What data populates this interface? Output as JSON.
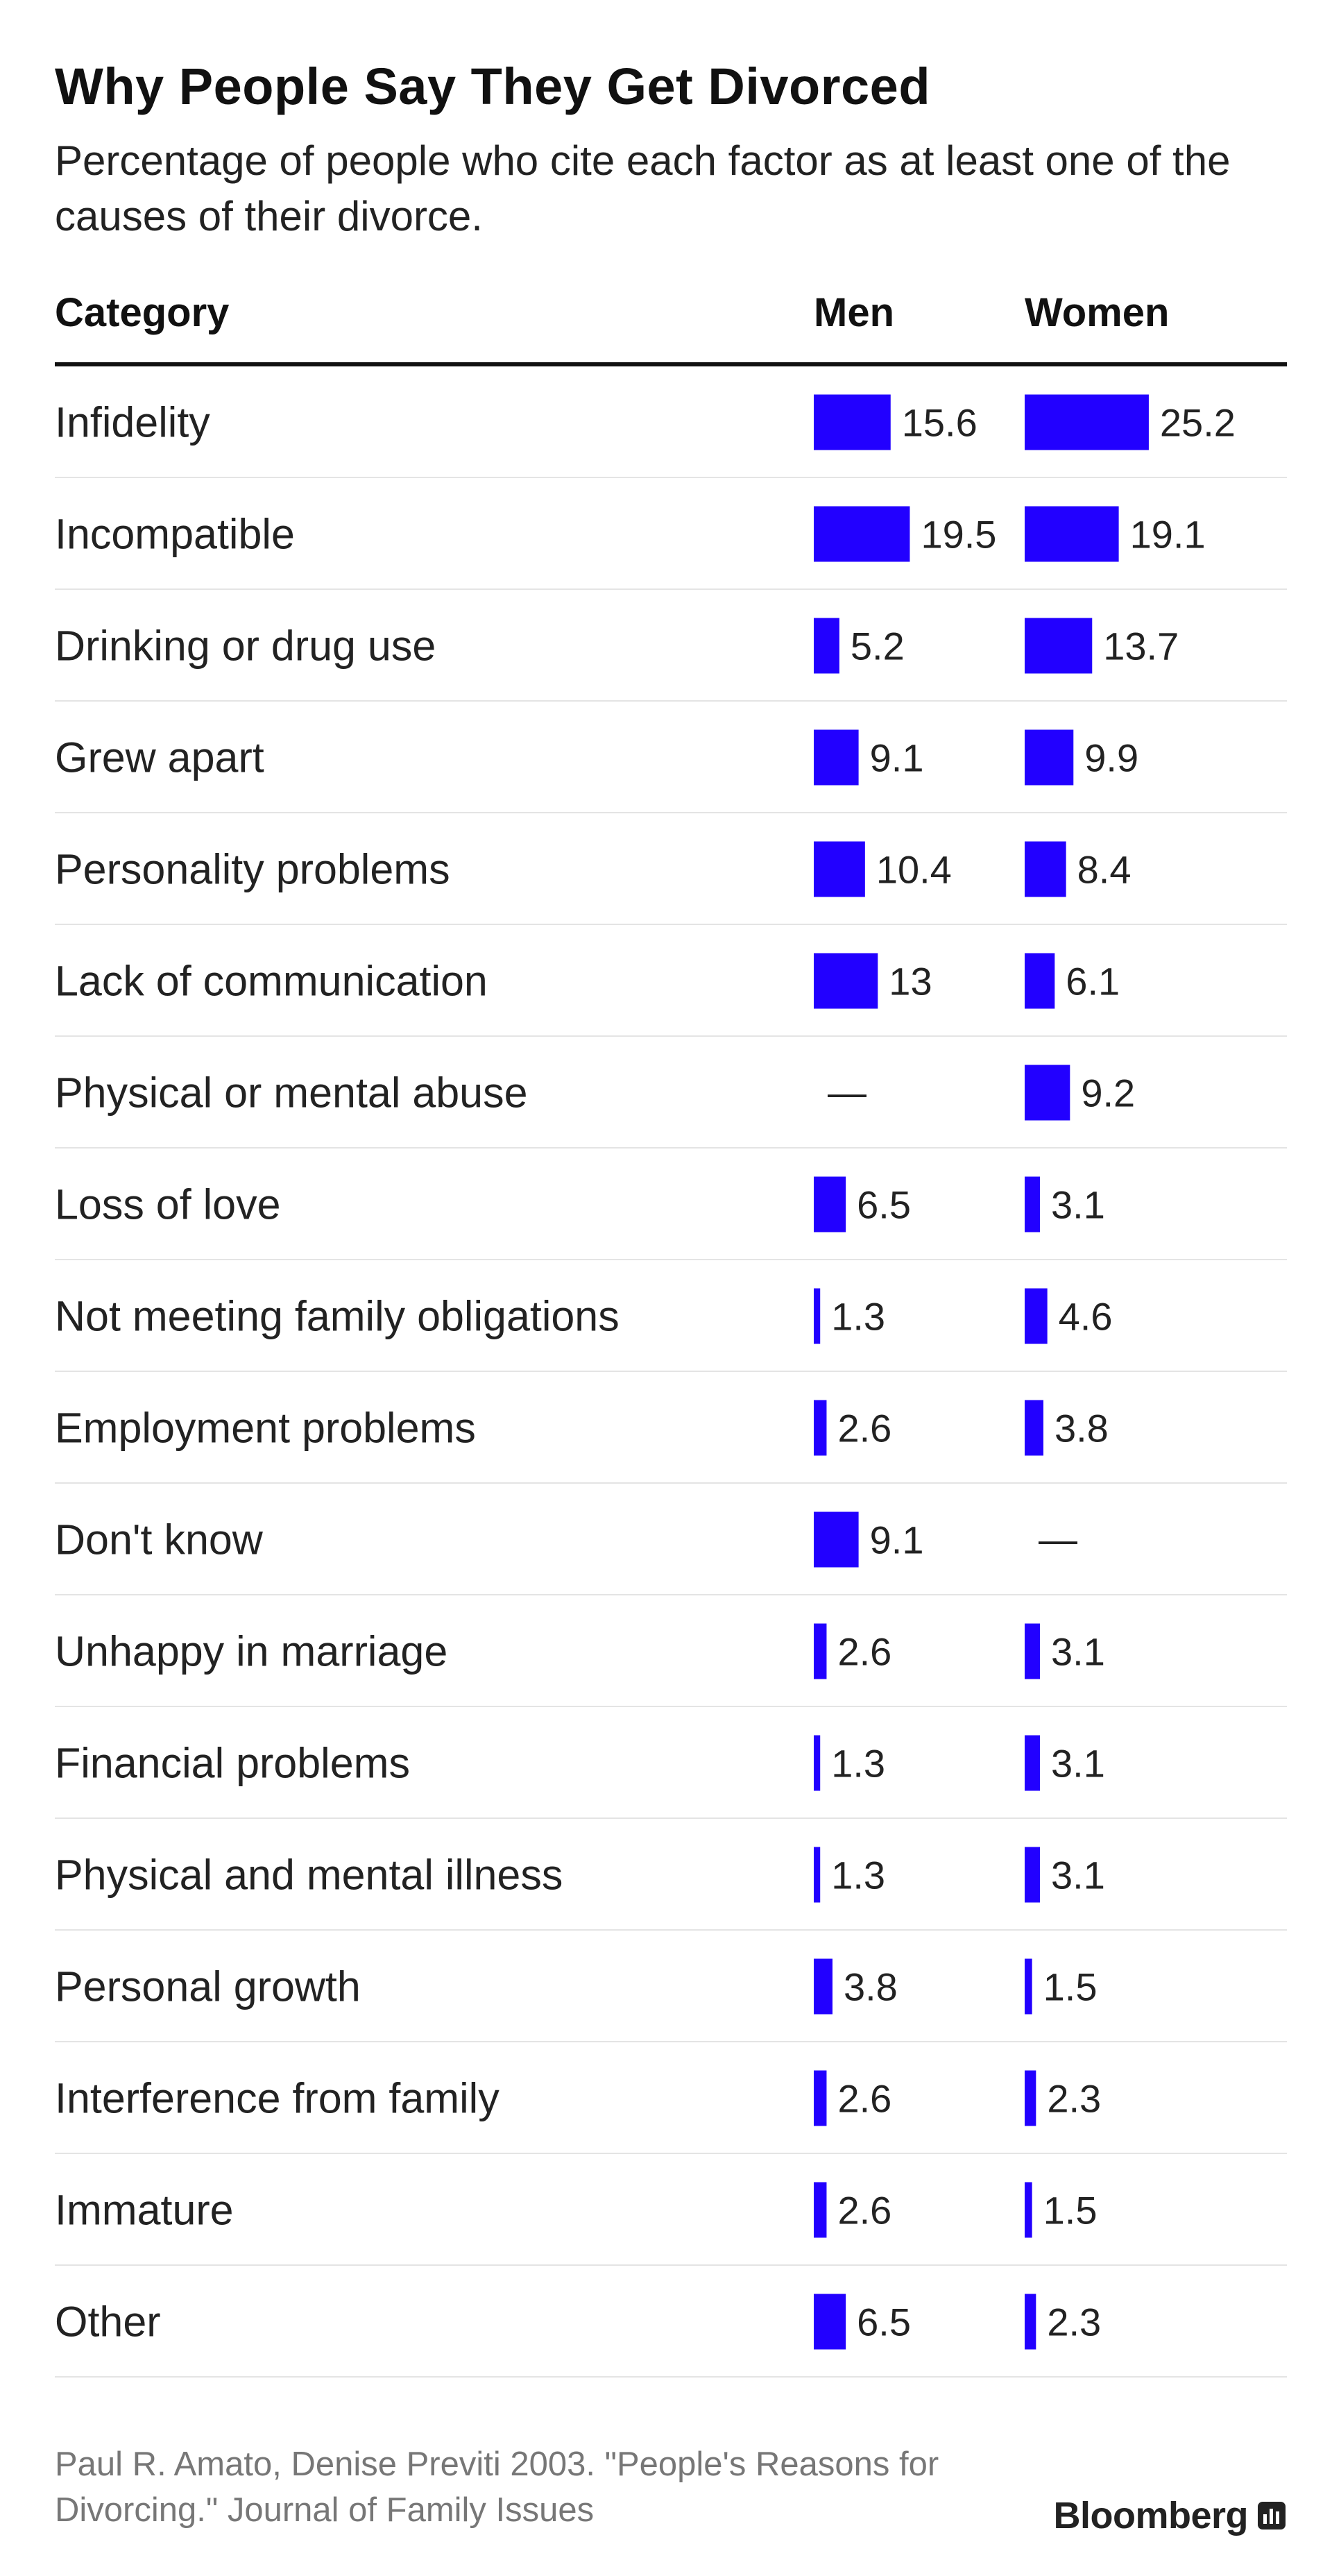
{
  "title": "Why People Say They Get Divorced",
  "subtitle": "Percentage of people who cite each factor as at least one of the causes of their divorce.",
  "source": "Paul R. Amato, Denise Previti 2003. \"People's Reasons for Divorcing.\" Journal of Family Issues",
  "brand": "Bloomberg",
  "colors": {
    "bar": "#2200ff",
    "rule": "#111111",
    "divider": "#e4e4e4"
  },
  "chart_data": {
    "type": "table",
    "columns": [
      "Category",
      "Men",
      "Women"
    ],
    "missing_label": "—",
    "series": [
      {
        "name": "Men"
      },
      {
        "name": "Women"
      }
    ],
    "rows": [
      {
        "category": "Infidelity",
        "men": 15.6,
        "women": 25.2,
        "men_label": "15.6",
        "women_label": "25.2"
      },
      {
        "category": "Incompatible",
        "men": 19.5,
        "women": 19.1,
        "men_label": "19.5",
        "women_label": "19.1"
      },
      {
        "category": "Drinking or drug use",
        "men": 5.2,
        "women": 13.7,
        "men_label": "5.2",
        "women_label": "13.7"
      },
      {
        "category": "Grew apart",
        "men": 9.1,
        "women": 9.9,
        "men_label": "9.1",
        "women_label": "9.9"
      },
      {
        "category": "Personality problems",
        "men": 10.4,
        "women": 8.4,
        "men_label": "10.4",
        "women_label": "8.4"
      },
      {
        "category": "Lack of communication",
        "men": 13,
        "women": 6.1,
        "men_label": "13",
        "women_label": "6.1"
      },
      {
        "category": "Physical or mental abuse",
        "men": null,
        "women": 9.2,
        "men_label": "—",
        "women_label": "9.2"
      },
      {
        "category": "Loss of love",
        "men": 6.5,
        "women": 3.1,
        "men_label": "6.5",
        "women_label": "3.1"
      },
      {
        "category": "Not meeting family obligations",
        "men": 1.3,
        "women": 4.6,
        "men_label": "1.3",
        "women_label": "4.6"
      },
      {
        "category": "Employment problems",
        "men": 2.6,
        "women": 3.8,
        "men_label": "2.6",
        "women_label": "3.8"
      },
      {
        "category": "Don't know",
        "men": 9.1,
        "women": null,
        "men_label": "9.1",
        "women_label": "—"
      },
      {
        "category": "Unhappy in marriage",
        "men": 2.6,
        "women": 3.1,
        "men_label": "2.6",
        "women_label": "3.1"
      },
      {
        "category": "Financial problems",
        "men": 1.3,
        "women": 3.1,
        "men_label": "1.3",
        "women_label": "3.1"
      },
      {
        "category": "Physical and mental illness",
        "men": 1.3,
        "women": 3.1,
        "men_label": "1.3",
        "women_label": "3.1"
      },
      {
        "category": "Personal growth",
        "men": 3.8,
        "women": 1.5,
        "men_label": "3.8",
        "women_label": "1.5"
      },
      {
        "category": "Interference from family",
        "men": 2.6,
        "women": 2.3,
        "men_label": "2.6",
        "women_label": "2.3"
      },
      {
        "category": "Immature",
        "men": 2.6,
        "women": 1.5,
        "men_label": "2.6",
        "women_label": "1.5"
      },
      {
        "category": "Other",
        "men": 6.5,
        "women": 2.3,
        "men_label": "6.5",
        "women_label": "2.3"
      }
    ]
  }
}
